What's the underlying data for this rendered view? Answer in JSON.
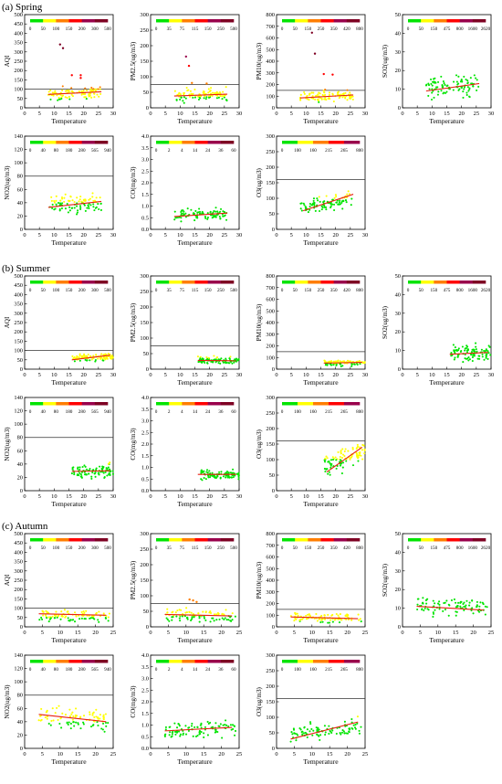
{
  "sections": [
    {
      "title": "(a) Spring"
    },
    {
      "title": "(b) Summer"
    },
    {
      "title": "(c) Autumn"
    }
  ],
  "colors": {
    "scale": [
      "#00e400",
      "#ffff00",
      "#ff7e00",
      "#ff0000",
      "#99004c",
      "#7e0023",
      "#000000"
    ],
    "trend": "#e81e10",
    "threshold": "#333333"
  },
  "panel_types": [
    {
      "key": "aqi",
      "ylabel": "AQI",
      "yticks": [
        "0",
        "50",
        "100",
        "150",
        "200",
        "250",
        "300",
        "350",
        "400",
        "450",
        "500"
      ],
      "ylim": [
        0,
        500
      ],
      "threshold": 100,
      "legend": [
        "0",
        "50",
        "100",
        "150",
        "200",
        "300",
        "500"
      ]
    },
    {
      "key": "pm25",
      "ylabel": "PM2.5(ug/m3)",
      "yticks": [
        "0",
        "50",
        "100",
        "150",
        "200",
        "250",
        "300"
      ],
      "ylim": [
        0,
        300
      ],
      "threshold": 75,
      "legend": [
        "0",
        "35",
        "75",
        "115",
        "150",
        "250",
        "500"
      ]
    },
    {
      "key": "pm10",
      "ylabel": "PM10(ug/m3)",
      "yticks": [
        "0",
        "100",
        "200",
        "300",
        "400",
        "500",
        "600",
        "700",
        "800"
      ],
      "ylim": [
        0,
        800
      ],
      "threshold": 150,
      "legend": [
        "0",
        "50",
        "150",
        "250",
        "350",
        "420",
        "800"
      ]
    },
    {
      "key": "so2",
      "ylabel": "SO2(ug/m3)",
      "yticks": [
        "0",
        "10",
        "20",
        "30",
        "40",
        "50"
      ],
      "ylim": [
        0,
        50
      ],
      "threshold": null,
      "legend": [
        "0",
        "50",
        "150",
        "475",
        "800",
        "1600",
        "2620"
      ]
    },
    {
      "key": "no2",
      "ylabel": "NO2(ug/m3)",
      "yticks": [
        "0",
        "20",
        "40",
        "60",
        "80",
        "100",
        "120",
        "140"
      ],
      "ylim": [
        0,
        140
      ],
      "threshold": 80,
      "legend": [
        "0",
        "40",
        "80",
        "180",
        "280",
        "565",
        "940"
      ]
    },
    {
      "key": "co",
      "ylabel": "CO(mg/m3)",
      "yticks": [
        "0.0",
        "0.5",
        "1.0",
        "1.5",
        "2.0",
        "2.5",
        "3.0",
        "3.5",
        "4.0"
      ],
      "ylim": [
        0,
        4
      ],
      "threshold": null,
      "legend": [
        "0",
        "2",
        "4",
        "14",
        "24",
        "36",
        "60"
      ]
    },
    {
      "key": "o3",
      "ylabel": "O3(ug/m3)",
      "yticks": [
        "0",
        "50",
        "100",
        "150",
        "200",
        "250",
        "300"
      ],
      "ylim": [
        0,
        300
      ],
      "threshold": 160,
      "legend": [
        "0",
        "100",
        "160",
        "215",
        "265",
        "800"
      ]
    }
  ],
  "xaxis": {
    "label": "Temperature",
    "spring": {
      "ticks": [
        "0",
        "5",
        "10",
        "15",
        "20",
        "25",
        "30"
      ],
      "xlim": [
        0,
        30
      ]
    },
    "summer": {
      "ticks": [
        "0",
        "5",
        "10",
        "15",
        "20",
        "25",
        "30"
      ],
      "xlim": [
        0,
        30
      ]
    },
    "autumn": {
      "ticks": [
        "0",
        "5",
        "10",
        "15",
        "20",
        "25"
      ],
      "xlim": [
        0,
        25
      ]
    }
  },
  "chart_data": [
    {
      "season": "spring",
      "panels": {
        "aqi": {
          "type": "scatter",
          "x_range": [
            8,
            26
          ],
          "y_center": 75,
          "y_spread": 28,
          "trend": [
            [
              8,
              72
            ],
            [
              26,
              86
            ]
          ],
          "outliers": [
            [
              12,
              340
            ],
            [
              13,
              320
            ],
            [
              16,
              175
            ],
            [
              19,
              175
            ],
            [
              19,
              160
            ]
          ]
        },
        "pm25": {
          "type": "scatter",
          "x_range": [
            8,
            26
          ],
          "y_center": 40,
          "y_spread": 18,
          "trend": [
            [
              8,
              38
            ],
            [
              26,
              44
            ]
          ],
          "outliers": [
            [
              12,
              165
            ],
            [
              13,
              135
            ],
            [
              14,
              80
            ],
            [
              19,
              78
            ]
          ]
        },
        "pm10": {
          "type": "scatter",
          "x_range": [
            8,
            26
          ],
          "y_center": 95,
          "y_spread": 40,
          "trend": [
            [
              8,
              85
            ],
            [
              26,
              110
            ]
          ],
          "outliers": [
            [
              12,
              645
            ],
            [
              13,
              465
            ],
            [
              16,
              290
            ],
            [
              19,
              285
            ]
          ]
        },
        "so2": {
          "type": "scatter",
          "x_range": [
            8,
            26
          ],
          "y_center": 12,
          "y_spread": 5,
          "trend": [
            [
              8,
              9
            ],
            [
              26,
              13
            ]
          ],
          "outliers": []
        },
        "no2": {
          "type": "scatter",
          "x_range": [
            8,
            26
          ],
          "y_center": 38,
          "y_spread": 11,
          "trend": [
            [
              8,
              33
            ],
            [
              26,
              42
            ]
          ],
          "outliers": []
        },
        "co": {
          "type": "scatter",
          "x_range": [
            8,
            26
          ],
          "y_center": 0.6,
          "y_spread": 0.2,
          "trend": [
            [
              8,
              0.55
            ],
            [
              26,
              0.7
            ]
          ],
          "outliers": []
        },
        "o3": {
          "type": "scatter",
          "x_range": [
            8,
            26
          ],
          "y_center": 85,
          "y_spread": 22,
          "trend": [
            [
              9,
              60
            ],
            [
              26,
              113
            ]
          ],
          "outliers": []
        }
      }
    },
    {
      "season": "summer",
      "panels": {
        "aqi": {
          "type": "scatter",
          "x_range": [
            16,
            30
          ],
          "y_center": 60,
          "y_spread": 16,
          "trend": [
            [
              16,
              50
            ],
            [
              29,
              75
            ]
          ],
          "outliers": []
        },
        "pm25": {
          "type": "scatter",
          "x_range": [
            16,
            30
          ],
          "y_center": 28,
          "y_spread": 10,
          "trend": [
            [
              16,
              28
            ],
            [
              29,
              27
            ]
          ],
          "outliers": []
        },
        "pm10": {
          "type": "scatter",
          "x_range": [
            16,
            30
          ],
          "y_center": 50,
          "y_spread": 20,
          "trend": [
            [
              16,
              52
            ],
            [
              29,
              58
            ]
          ],
          "outliers": []
        },
        "so2": {
          "type": "scatter",
          "x_range": [
            16,
            30
          ],
          "y_center": 9,
          "y_spread": 3.5,
          "trend": [
            [
              16,
              8
            ],
            [
              29,
              9
            ]
          ],
          "outliers": []
        },
        "no2": {
          "type": "scatter",
          "x_range": [
            16,
            30
          ],
          "y_center": 28,
          "y_spread": 8,
          "trend": [
            [
              16,
              29
            ],
            [
              29,
              30
            ]
          ],
          "outliers": []
        },
        "co": {
          "type": "scatter",
          "x_range": [
            16,
            30
          ],
          "y_center": 0.65,
          "y_spread": 0.18,
          "trend": [
            [
              16,
              0.7
            ],
            [
              29,
              0.7
            ]
          ],
          "outliers": []
        },
        "o3": {
          "type": "scatter",
          "x_range": [
            16,
            30
          ],
          "y_center": 110,
          "y_spread": 30,
          "trend": [
            [
              17,
              60
            ],
            [
              29,
              140
            ]
          ],
          "outliers": []
        }
      }
    },
    {
      "season": "autumn",
      "panels": {
        "aqi": {
          "type": "scatter",
          "x_range": [
            4,
            24
          ],
          "y_center": 55,
          "y_spread": 22,
          "trend": [
            [
              4,
              70
            ],
            [
              23,
              62
            ]
          ],
          "outliers": []
        },
        "pm25": {
          "type": "scatter",
          "x_range": [
            4,
            24
          ],
          "y_center": 35,
          "y_spread": 17,
          "trend": [
            [
              4,
              40
            ],
            [
              23,
              35
            ]
          ],
          "outliers": [
            [
              11,
              88
            ],
            [
              12,
              85
            ],
            [
              13,
              80
            ]
          ]
        },
        "pm10": {
          "type": "scatter",
          "x_range": [
            4,
            24
          ],
          "y_center": 75,
          "y_spread": 30,
          "trend": [
            [
              4,
              85
            ],
            [
              23,
              70
            ]
          ],
          "outliers": []
        },
        "so2": {
          "type": "scatter",
          "x_range": [
            4,
            24
          ],
          "y_center": 11,
          "y_spread": 3.5,
          "trend": [
            [
              4,
              11
            ],
            [
              23,
              9
            ]
          ],
          "outliers": []
        },
        "no2": {
          "type": "scatter",
          "x_range": [
            4,
            24
          ],
          "y_center": 45,
          "y_spread": 13,
          "trend": [
            [
              4,
              51
            ],
            [
              23,
              40
            ]
          ],
          "outliers": []
        },
        "co": {
          "type": "scatter",
          "x_range": [
            4,
            24
          ],
          "y_center": 0.8,
          "y_spread": 0.28,
          "trend": [
            [
              4,
              0.75
            ],
            [
              23,
              0.9
            ]
          ],
          "outliers": []
        },
        "o3": {
          "type": "scatter",
          "x_range": [
            4,
            24
          ],
          "y_center": 55,
          "y_spread": 22,
          "trend": [
            [
              4,
              30
            ],
            [
              23,
              85
            ]
          ],
          "outliers": []
        }
      }
    }
  ]
}
